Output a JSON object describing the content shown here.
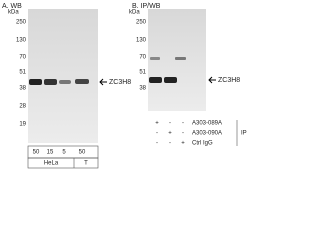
{
  "panel_a": {
    "title": "A. WB",
    "unit": "kDa",
    "markers": [
      "250",
      "130",
      "70",
      "51",
      "38",
      "28",
      "19"
    ],
    "band_label": "ZC3H8",
    "lanes": [
      "50",
      "15",
      "5",
      "50"
    ],
    "groups": [
      "HeLa",
      "T"
    ]
  },
  "panel_b": {
    "title": "B. IP/WB",
    "unit": "kDa",
    "markers": [
      "250",
      "130",
      "70",
      "51",
      "38"
    ],
    "band_label": "ZC3H8",
    "rows": [
      {
        "label": "A303-089A",
        "marks": [
          "+",
          "-",
          "-"
        ]
      },
      {
        "label": "A303-090A",
        "marks": [
          "-",
          "+",
          "-"
        ]
      },
      {
        "label": "Ctrl IgG",
        "marks": [
          "-",
          "-",
          "+"
        ]
      }
    ],
    "group_label": "IP"
  }
}
